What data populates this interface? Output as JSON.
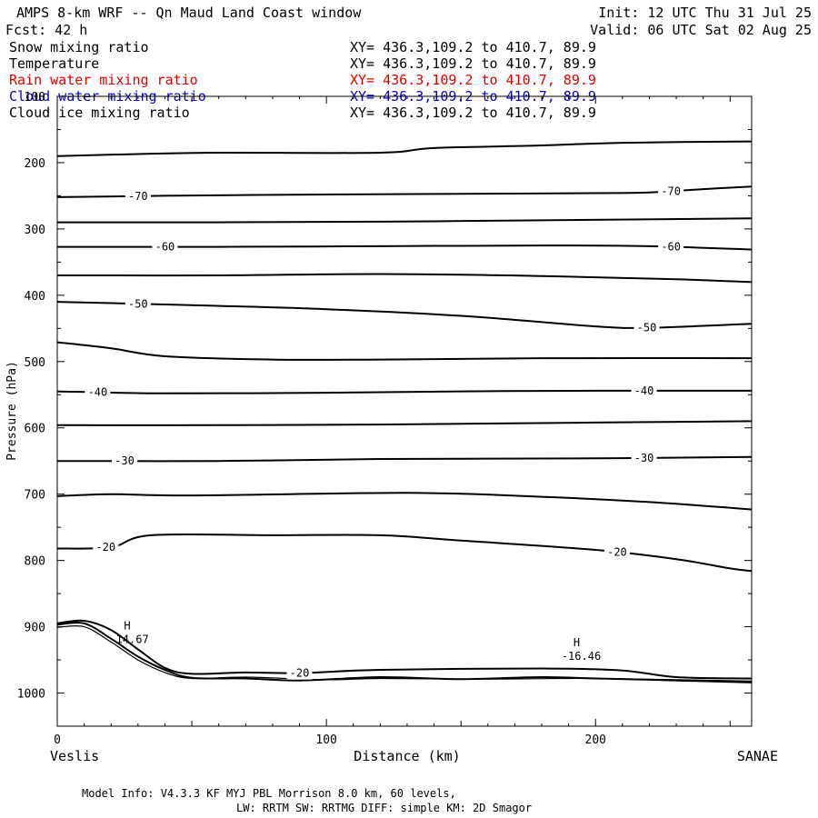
{
  "header": {
    "title": "AMPS 8-km WRF -- Qn Maud Land Coast window",
    "forecast": "Fcst:   42 h",
    "init": "Init: 12 UTC Thu 31 Jul 25",
    "valid": "Valid: 06 UTC Sat 02 Aug 25"
  },
  "fields": [
    {
      "name": "Snow mixing ratio",
      "xy": "XY= 436.3,109.2 to 410.7, 89.9",
      "color": "#000000"
    },
    {
      "name": "Temperature",
      "xy": "XY= 436.3,109.2 to 410.7, 89.9",
      "color": "#000000"
    },
    {
      "name": "Rain water mixing ratio",
      "xy": "XY= 436.3,109.2 to 410.7, 89.9",
      "color": "#e00000"
    },
    {
      "name": "Cloud water mixing ratio",
      "xy": "XY= 436.3,109.2 to 410.7, 89.9",
      "color": "#0000cc"
    },
    {
      "name": "Cloud ice mixing ratio",
      "xy": "XY= 436.3,109.2 to 410.7, 89.9",
      "color": "#000000"
    }
  ],
  "footer": {
    "line1": "Model Info: V4.3.3   KF      MYJ PBL  Morrison            8.0 km,  60 levels,",
    "line2": "LW: RRTM SW: RRTMG   DIFF: simple KM: 2D Smagor"
  },
  "chart_data": {
    "type": "line",
    "xlabel": "Distance (km)",
    "ylabel": "Pressure (hPa)",
    "xlim": [
      0,
      258
    ],
    "ylim": [
      100,
      1050
    ],
    "y_axis_inverted": true,
    "x_ticks": [
      0,
      100,
      200
    ],
    "y_ticks": [
      100,
      200,
      300,
      400,
      500,
      600,
      700,
      800,
      900,
      1000
    ],
    "x_endpoint_labels": {
      "left": "Veslis",
      "right": "SANAE"
    },
    "contour_levels": [
      {
        "label": "",
        "points": [
          [
            0,
            190
          ],
          [
            30,
            187
          ],
          [
            60,
            185
          ],
          [
            120,
            185
          ],
          [
            140,
            178
          ],
          [
            180,
            174
          ],
          [
            210,
            170
          ],
          [
            258,
            168
          ]
        ],
        "label_x": null
      },
      {
        "label": "-70",
        "points": [
          [
            0,
            252
          ],
          [
            40,
            250
          ],
          [
            100,
            248
          ],
          [
            150,
            247
          ],
          [
            200,
            246
          ],
          [
            220,
            245
          ],
          [
            240,
            240
          ],
          [
            258,
            236
          ]
        ],
        "label_x": [
          30,
          228
        ]
      },
      {
        "label": "",
        "points": [
          [
            0,
            290
          ],
          [
            60,
            290
          ],
          [
            120,
            289
          ],
          [
            180,
            287
          ],
          [
            258,
            284
          ]
        ],
        "label_x": null
      },
      {
        "label": "-60",
        "points": [
          [
            0,
            327
          ],
          [
            60,
            327
          ],
          [
            120,
            326
          ],
          [
            180,
            325
          ],
          [
            220,
            326
          ],
          [
            258,
            331
          ]
        ],
        "label_x": [
          40,
          228
        ]
      },
      {
        "label": "",
        "points": [
          [
            0,
            370
          ],
          [
            60,
            370
          ],
          [
            120,
            368
          ],
          [
            180,
            371
          ],
          [
            230,
            376
          ],
          [
            258,
            380
          ]
        ],
        "label_x": null
      },
      {
        "label": "-50",
        "points": [
          [
            0,
            410
          ],
          [
            50,
            415
          ],
          [
            100,
            421
          ],
          [
            150,
            431
          ],
          [
            200,
            447
          ],
          [
            220,
            449
          ],
          [
            258,
            443
          ]
        ],
        "label_x": [
          30,
          219
        ]
      },
      {
        "label": "",
        "points": [
          [
            0,
            471
          ],
          [
            20,
            480
          ],
          [
            40,
            492
          ],
          [
            80,
            497
          ],
          [
            120,
            497
          ],
          [
            180,
            495
          ],
          [
            258,
            495
          ]
        ],
        "label_x": null
      },
      {
        "label": "-40",
        "points": [
          [
            0,
            545
          ],
          [
            40,
            548
          ],
          [
            100,
            547
          ],
          [
            150,
            545
          ],
          [
            200,
            544
          ],
          [
            258,
            544
          ]
        ],
        "label_x": [
          15,
          218
        ]
      },
      {
        "label": "",
        "points": [
          [
            0,
            596
          ],
          [
            60,
            596
          ],
          [
            120,
            595
          ],
          [
            200,
            592
          ],
          [
            258,
            590
          ]
        ],
        "label_x": null
      },
      {
        "label": "-30",
        "points": [
          [
            0,
            650
          ],
          [
            60,
            650
          ],
          [
            120,
            647
          ],
          [
            200,
            646
          ],
          [
            258,
            644
          ]
        ],
        "label_x": [
          25,
          218
        ]
      },
      {
        "label": "",
        "points": [
          [
            0,
            703
          ],
          [
            20,
            700
          ],
          [
            50,
            702
          ],
          [
            130,
            698
          ],
          [
            180,
            704
          ],
          [
            220,
            712
          ],
          [
            258,
            723
          ]
        ],
        "label_x": null
      },
      {
        "label": "-20",
        "points": [
          [
            0,
            782
          ],
          [
            20,
            780
          ],
          [
            35,
            762
          ],
          [
            80,
            762
          ],
          [
            120,
            762
          ],
          [
            150,
            770
          ],
          [
            200,
            784
          ],
          [
            230,
            798
          ],
          [
            250,
            812
          ],
          [
            258,
            816
          ]
        ],
        "label_x": [
          18,
          208
        ]
      },
      {
        "label": "-20",
        "points": [
          [
            0,
            895
          ],
          [
            10,
            891
          ],
          [
            20,
            905
          ],
          [
            30,
            934
          ],
          [
            40,
            962
          ],
          [
            50,
            971
          ],
          [
            70,
            969
          ],
          [
            90,
            970
          ],
          [
            120,
            965
          ],
          [
            180,
            963
          ],
          [
            210,
            966
          ],
          [
            230,
            976
          ],
          [
            258,
            978
          ]
        ],
        "label_x": [
          90
        ]
      }
    ],
    "terrain": [
      [
        0,
        897
      ],
      [
        10,
        895
      ],
      [
        20,
        918
      ],
      [
        30,
        945
      ],
      [
        40,
        965
      ],
      [
        50,
        977
      ],
      [
        70,
        978
      ],
      [
        90,
        981
      ],
      [
        120,
        976
      ],
      [
        150,
        979
      ],
      [
        180,
        976
      ],
      [
        200,
        978
      ],
      [
        220,
        980
      ],
      [
        258,
        984
      ]
    ],
    "terrain2": [
      [
        0,
        901
      ],
      [
        10,
        900
      ],
      [
        20,
        923
      ],
      [
        30,
        950
      ],
      [
        40,
        969
      ],
      [
        50,
        978
      ],
      [
        70,
        976
      ],
      [
        100,
        980
      ],
      [
        120,
        978
      ],
      [
        160,
        979
      ],
      [
        200,
        978
      ],
      [
        258,
        982
      ]
    ],
    "highs": [
      {
        "label": "H",
        "value": "-14.67",
        "x": 25,
        "p": 915
      },
      {
        "label": "H",
        "value": "-16.46",
        "x": 193,
        "p": 940
      }
    ]
  }
}
